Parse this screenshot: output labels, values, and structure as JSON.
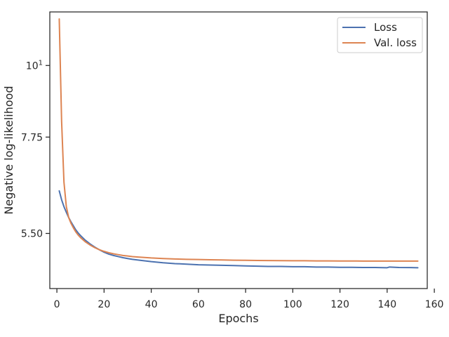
{
  "chart_data": {
    "type": "line",
    "title": "",
    "xlabel": "Epochs",
    "ylabel": "Negative log-likelihood",
    "yscale": "log",
    "xlim": [
      -3,
      157
    ],
    "ylim": [
      4.52,
      12.1
    ],
    "grid": false,
    "legend_position": "top-right",
    "xticks": [
      {
        "value": 0,
        "label": "0"
      },
      {
        "value": 20,
        "label": "20"
      },
      {
        "value": 40,
        "label": "40"
      },
      {
        "value": 60,
        "label": "60"
      },
      {
        "value": 80,
        "label": "80"
      },
      {
        "value": 100,
        "label": "100"
      },
      {
        "value": 120,
        "label": "120"
      },
      {
        "value": 140,
        "label": "140"
      },
      {
        "value": 160,
        "label": "160"
      }
    ],
    "yticks": [
      {
        "value": 5.5,
        "label": "5.50",
        "label_base": "",
        "label_exp": ""
      },
      {
        "value": 7.75,
        "label": "7.75",
        "label_base": "",
        "label_exp": ""
      },
      {
        "value": 10,
        "label": "10^1",
        "label_base": "10",
        "label_exp": "1"
      }
    ],
    "series": [
      {
        "name": "Loss",
        "color": "#4c72b0",
        "x": [
          1,
          2,
          3,
          4,
          5,
          6,
          7,
          8,
          9,
          10,
          12,
          14,
          16,
          18,
          20,
          22,
          24,
          26,
          28,
          30,
          32,
          35,
          40,
          45,
          50,
          55,
          60,
          65,
          70,
          75,
          80,
          85,
          90,
          95,
          100,
          105,
          110,
          115,
          120,
          125,
          130,
          135,
          140,
          141,
          145,
          150,
          153
        ],
        "y": [
          6.4,
          6.2,
          6.05,
          5.93,
          5.82,
          5.73,
          5.65,
          5.57,
          5.51,
          5.46,
          5.37,
          5.3,
          5.24,
          5.19,
          5.145,
          5.11,
          5.085,
          5.065,
          5.045,
          5.03,
          5.015,
          5.0,
          4.975,
          4.955,
          4.94,
          4.93,
          4.92,
          4.915,
          4.91,
          4.905,
          4.9,
          4.895,
          4.89,
          4.89,
          4.885,
          4.885,
          4.88,
          4.88,
          4.875,
          4.875,
          4.872,
          4.872,
          4.868,
          4.88,
          4.872,
          4.87,
          4.868
        ]
      },
      {
        "name": "Val. loss",
        "color": "#dd8452",
        "x": [
          1,
          2,
          3,
          4,
          5,
          6,
          7,
          8,
          9,
          10,
          12,
          14,
          16,
          18,
          20,
          22,
          24,
          26,
          28,
          30,
          32,
          35,
          40,
          45,
          50,
          55,
          60,
          65,
          70,
          75,
          80,
          85,
          90,
          95,
          100,
          105,
          110,
          115,
          120,
          125,
          130,
          135,
          140,
          145,
          150,
          153
        ],
        "y": [
          11.8,
          8.2,
          6.6,
          6.05,
          5.82,
          5.7,
          5.61,
          5.53,
          5.47,
          5.42,
          5.34,
          5.28,
          5.23,
          5.19,
          5.16,
          5.135,
          5.115,
          5.1,
          5.085,
          5.075,
          5.065,
          5.055,
          5.04,
          5.03,
          5.022,
          5.016,
          5.012,
          5.008,
          5.004,
          5.0,
          4.998,
          4.996,
          4.994,
          4.992,
          4.99,
          4.99,
          4.988,
          4.988,
          4.986,
          4.986,
          4.985,
          4.985,
          4.984,
          4.984,
          4.984,
          4.984
        ]
      }
    ]
  }
}
